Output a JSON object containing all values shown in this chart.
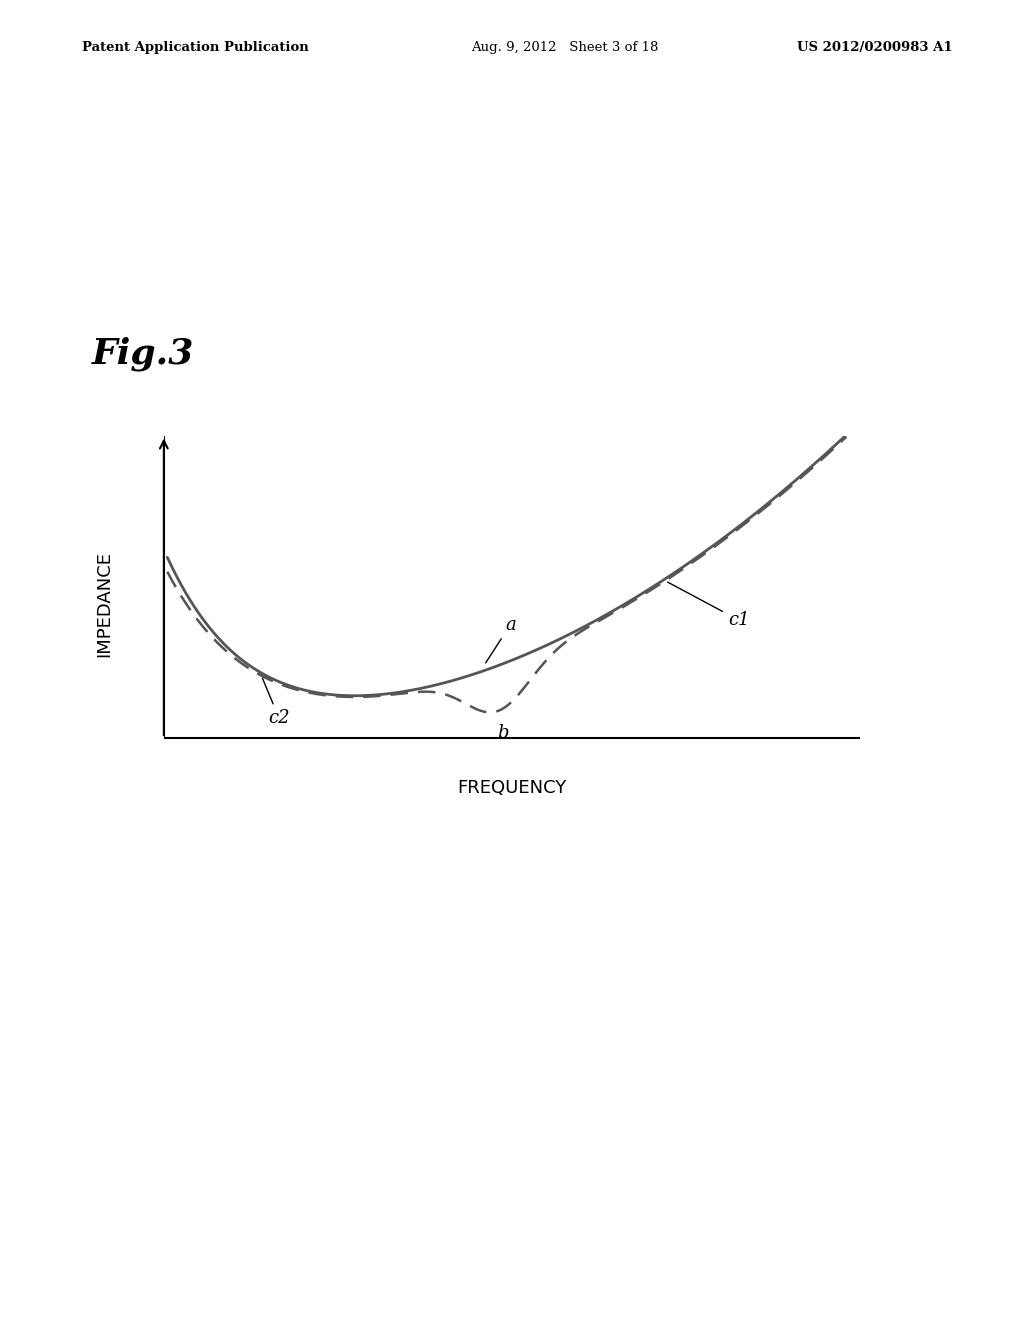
{
  "header_left": "Patent Application Publication",
  "header_center": "Aug. 9, 2012   Sheet 3 of 18",
  "header_right": "US 2012/0200983 A1",
  "fig_label": "Fig.3",
  "xlabel": "FREQUENCY",
  "ylabel": "IMPEDANCE",
  "label_a": "a",
  "label_b": "b",
  "label_c1": "c1",
  "label_c2": "c2",
  "bg_color": "#ffffff",
  "curve_color": "#555555",
  "axis_color": "#000000",
  "header_fontsize": 9.5,
  "fig_label_fontsize": 26,
  "axis_label_fontsize": 13,
  "annotation_fontsize": 13
}
